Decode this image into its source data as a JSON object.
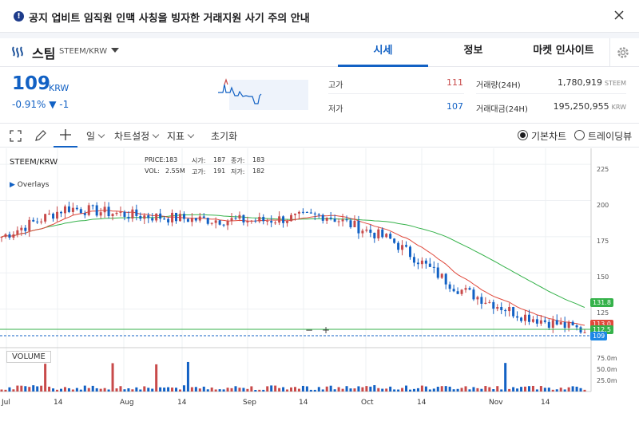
{
  "notice": {
    "text": "공지 업비트 임직원 인맥 사칭을 빙자한 거래지원 사기 주의 안내",
    "icon": "info-icon"
  },
  "market": {
    "name": "스팀",
    "pair": "STEEM/KRW",
    "tabs": [
      "시세",
      "정보",
      "마켓 인사이트"
    ],
    "active_tab": "시세"
  },
  "price": {
    "value": "109",
    "unit": "KRW",
    "change": "-0.91% ▼ -1",
    "high_label": "고가",
    "high": "111",
    "low_label": "저가",
    "low": "107",
    "volume_label": "거래량(24H)",
    "volume": "1,780,919",
    "volume_unit": "STEEM",
    "amount_label": "거래대금(24H)",
    "amount": "195,250,955",
    "amount_unit": "KRW"
  },
  "toolbar": {
    "period": "일",
    "chart_settings": "차트설정",
    "indicators": "지표",
    "reset": "초기화",
    "basic_chart": "기본차트",
    "tradingview": "트레이딩뷰"
  },
  "chart": {
    "symbol": "STEEM/KRW",
    "overlays": "Overlays",
    "ohlc": {
      "price_label": "PRICE:",
      "price": "183",
      "open_label": "시가:",
      "open": "187",
      "close_label": "종가:",
      "close": "183",
      "vol_label": "VOL:",
      "vol": "2.55M",
      "high_label": "고가:",
      "high": "191",
      "low_label": "저가:",
      "low": "182"
    },
    "volume_label": "VOLUME",
    "y_ticks": [
      "225",
      "200",
      "175",
      "150",
      "125"
    ],
    "vol_ticks": [
      "75.0m",
      "50.0m",
      "25.0m"
    ],
    "x_ticks": [
      "Jul",
      "14",
      "Aug",
      "14",
      "Sep",
      "14",
      "Oct",
      "14",
      "Nov",
      "14"
    ],
    "tags": {
      "ma_long": "131.8",
      "ma_short": "113.0",
      "level": "112.5",
      "current": "109"
    },
    "colors": {
      "up": "#c84a4a",
      "down": "#1261c4",
      "ma_short": "#e0493c",
      "ma_long": "#35b24a"
    }
  },
  "chart_data": {
    "type": "line",
    "title": "",
    "xlabel": "",
    "ylabel": "",
    "x": [
      "Jul",
      "14",
      "Aug",
      "14",
      "Sep",
      "14",
      "Oct",
      "14",
      "Nov",
      "14"
    ],
    "series": [
      {
        "values": [
          175,
          195,
          190,
          187,
          186,
          190,
          173,
          140,
          121,
          110
        ]
      }
    ],
    "ylim": [
      100,
      235
    ]
  }
}
